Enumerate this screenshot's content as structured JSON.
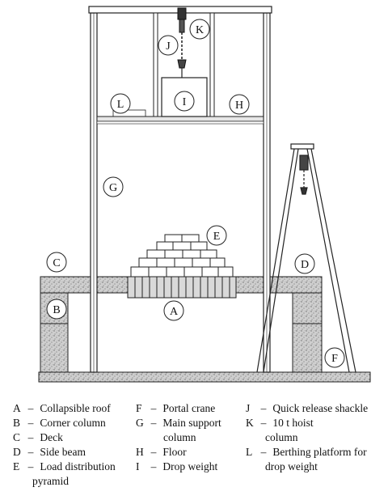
{
  "figure": {
    "callouts": {
      "A": "A",
      "B": "B",
      "C": "C",
      "D": "D",
      "E": "E",
      "F": "F",
      "G": "G",
      "H": "H",
      "I": "I",
      "J": "J",
      "K": "K",
      "L": "L"
    }
  },
  "legend": {
    "col1": [
      {
        "key": "A",
        "dash": "–",
        "text": "Collapsible roof",
        "cont": ""
      },
      {
        "key": "B",
        "dash": "–",
        "text": "Corner column",
        "cont": ""
      },
      {
        "key": "C",
        "dash": "–",
        "text": "Deck",
        "cont": ""
      },
      {
        "key": "D",
        "dash": "–",
        "text": "Side beam",
        "cont": ""
      },
      {
        "key": "E",
        "dash": "–",
        "text": "Load distribution",
        "cont": "pyramid"
      }
    ],
    "col2": [
      {
        "key": "F",
        "dash": "–",
        "text": "Portal crane",
        "cont": ""
      },
      {
        "key": "G",
        "dash": "–",
        "text": "Main support",
        "cont": "column"
      },
      {
        "key": "H",
        "dash": "–",
        "text": "Floor",
        "cont": ""
      },
      {
        "key": "I",
        "dash": "–",
        "text": "Drop weight",
        "cont": ""
      }
    ],
    "col3": [
      {
        "key": "J",
        "dash": "–",
        "text": "Quick release shackle",
        "cont": ""
      },
      {
        "key": "K",
        "dash": "–",
        "text": "10 t hoist",
        "cont": "column"
      },
      {
        "key": "L",
        "dash": "–",
        "text": "Berthing platform for",
        "cont": "drop weight"
      }
    ]
  }
}
